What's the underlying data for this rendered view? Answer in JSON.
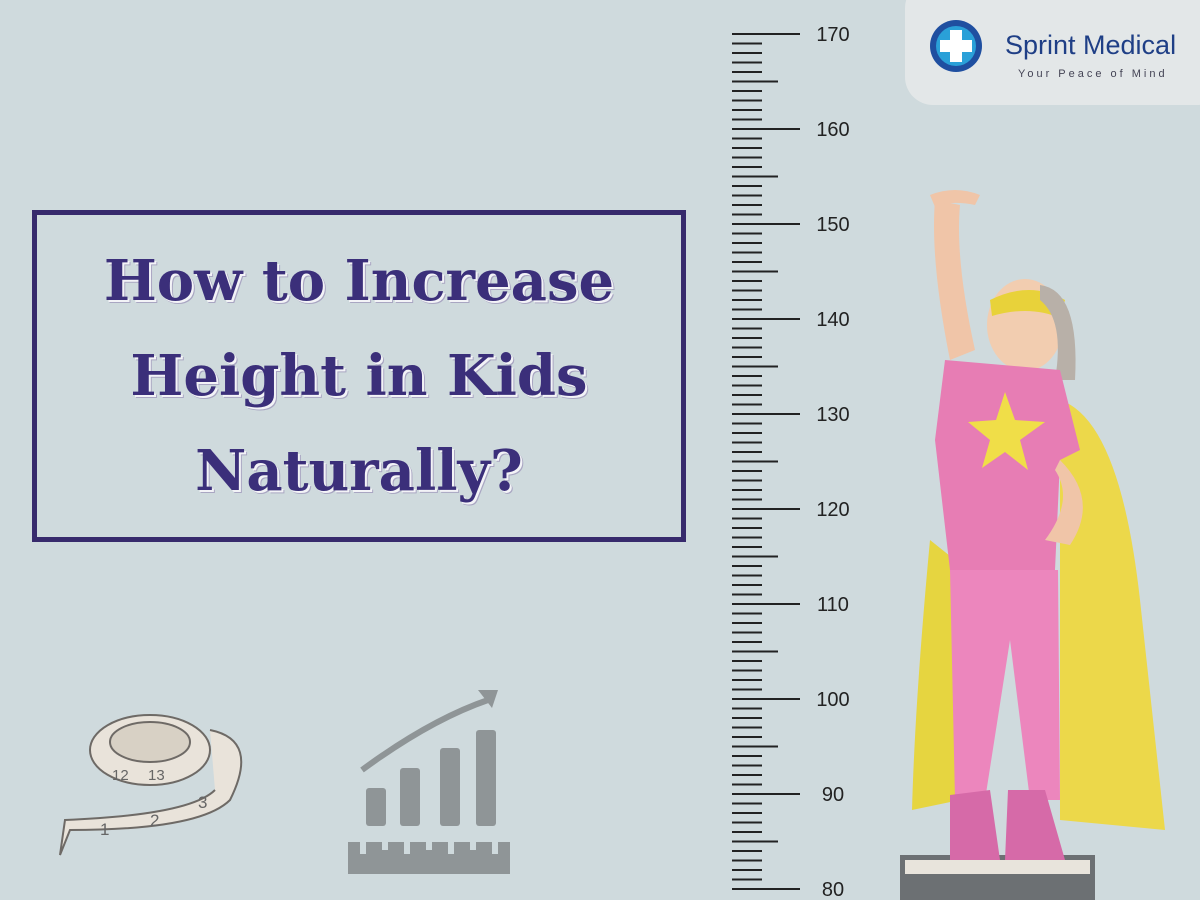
{
  "title": {
    "lines": [
      "How to Increase",
      "Height in Kids",
      "Naturally?"
    ]
  },
  "logo": {
    "name": "Sprint Medical",
    "tagline": "Your Peace of Mind"
  },
  "ruler": {
    "labels": [
      170,
      160,
      150,
      140,
      130,
      120,
      110,
      100,
      90,
      80
    ]
  },
  "tape_labels": [
    "12",
    "13",
    "1",
    "2",
    "3"
  ]
}
